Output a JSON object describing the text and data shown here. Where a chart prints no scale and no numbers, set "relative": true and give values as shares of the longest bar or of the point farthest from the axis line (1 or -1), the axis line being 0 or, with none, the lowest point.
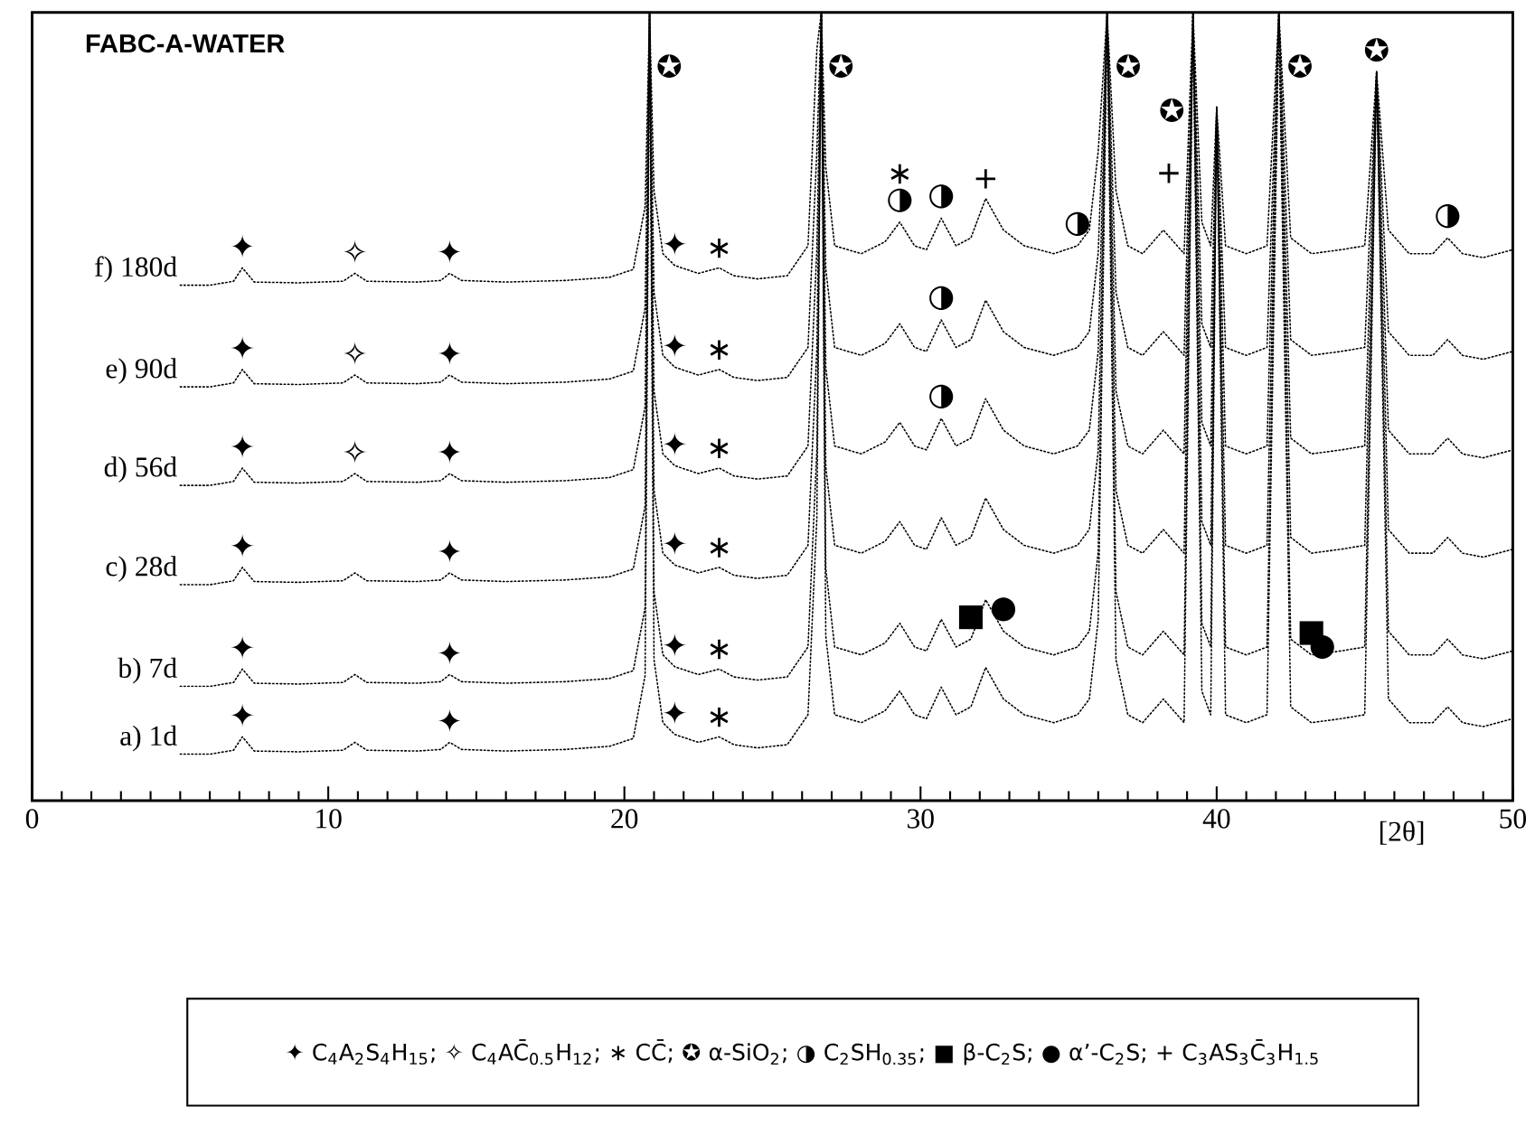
{
  "chart_data": {
    "type": "line",
    "title": "FABC-A-WATER",
    "xlabel": "[2θ]",
    "relative": true,
    "line_style": "dotted",
    "marker": "none",
    "xlim": [
      0,
      50
    ],
    "xticks": [
      0,
      {
        "value": 1,
        "label": null
      },
      {
        "value": 2,
        "label": null
      },
      {
        "value": 3,
        "label": null
      },
      {
        "value": 4,
        "label": null
      },
      {
        "value": 5,
        "label": null
      },
      {
        "value": 6,
        "label": null
      },
      {
        "value": 7,
        "label": null
      },
      {
        "value": 8,
        "label": null
      },
      {
        "value": 9,
        "label": null
      },
      10,
      {
        "value": 11,
        "label": null
      },
      {
        "value": 12,
        "label": null
      },
      {
        "value": 13,
        "label": null
      },
      {
        "value": 14,
        "label": null
      },
      {
        "value": 15,
        "label": null
      },
      {
        "value": 16,
        "label": null
      },
      {
        "value": 17,
        "label": null
      },
      {
        "value": 18,
        "label": null
      },
      {
        "value": 19,
        "label": null
      },
      20,
      {
        "value": 21,
        "label": null
      },
      {
        "value": 22,
        "label": null
      },
      {
        "value": 23,
        "label": null
      },
      {
        "value": 24,
        "label": null
      },
      {
        "value": 25,
        "label": null
      },
      {
        "value": 26,
        "label": null
      },
      {
        "value": 27,
        "label": null
      },
      {
        "value": 28,
        "label": null
      },
      {
        "value": 29,
        "label": null
      },
      30,
      {
        "value": 31,
        "label": null
      },
      {
        "value": 32,
        "label": null
      },
      {
        "value": 33,
        "label": null
      },
      {
        "value": 34,
        "label": null
      },
      {
        "value": 35,
        "label": null
      },
      {
        "value": 36,
        "label": null
      },
      {
        "value": 37,
        "label": null
      },
      {
        "value": 38,
        "label": null
      },
      {
        "value": 39,
        "label": null
      },
      40,
      {
        "value": 41,
        "label": null
      },
      {
        "value": 42,
        "label": null
      },
      {
        "value": 43,
        "label": null
      },
      {
        "value": 44,
        "label": null
      },
      {
        "value": 45,
        "label": null
      },
      {
        "value": 46,
        "label": null
      },
      {
        "value": 47,
        "label": null
      },
      {
        "value": 48,
        "label": null
      },
      {
        "value": 49,
        "label": null
      },
      50
    ],
    "x": [
      5,
      6,
      6.8,
      7.1,
      7.5,
      9,
      10.5,
      10.9,
      11.3,
      13,
      13.8,
      14.1,
      14.5,
      16,
      18,
      19.5,
      20.3,
      20.7,
      20.85,
      21.0,
      21.3,
      21.7,
      22.5,
      23.2,
      23.7,
      24.5,
      25.5,
      26.2,
      26.5,
      26.65,
      26.8,
      27.1,
      28,
      28.8,
      29.3,
      29.8,
      30.2,
      30.7,
      31.2,
      31.7,
      32.2,
      32.8,
      33.5,
      34.5,
      35.3,
      35.7,
      36.0,
      36.3,
      36.6,
      37.0,
      37.5,
      38.2,
      38.9,
      39.2,
      39.5,
      39.8,
      40.0,
      40.3,
      41.0,
      41.7,
      42.1,
      42.5,
      43.2,
      44.2,
      45.0,
      45.4,
      45.8,
      46.5,
      47.3,
      47.8,
      48.3,
      49,
      50
    ],
    "series": [
      {
        "name": "f) 180d",
        "color": "#000000",
        "values": [
          0.654,
          0.654,
          0.659,
          0.676,
          0.658,
          0.657,
          0.659,
          0.669,
          0.659,
          0.658,
          0.66,
          0.669,
          0.66,
          0.658,
          0.66,
          0.664,
          0.674,
          0.754,
          1,
          0.774,
          0.694,
          0.679,
          0.669,
          0.676,
          0.666,
          0.662,
          0.666,
          0.704,
          0.954,
          1,
          0.804,
          0.704,
          0.694,
          0.709,
          0.734,
          0.704,
          0.699,
          0.739,
          0.704,
          0.714,
          0.764,
          0.724,
          0.704,
          0.694,
          0.704,
          0.724,
          0.824,
          1,
          0.774,
          0.704,
          0.694,
          0.724,
          0.694,
          1,
          0.734,
          0.704,
          0.88,
          0.704,
          0.694,
          0.704,
          1,
          0.714,
          0.694,
          0.699,
          0.704,
          0.925,
          0.724,
          0.694,
          0.694,
          0.714,
          0.694,
          0.689,
          0.699
        ]
      },
      {
        "name": "e) 90d",
        "color": "#000000",
        "values": [
          0.525,
          0.525,
          0.53,
          0.547,
          0.529,
          0.528,
          0.53,
          0.54,
          0.53,
          0.529,
          0.531,
          0.54,
          0.531,
          0.529,
          0.531,
          0.535,
          0.545,
          0.625,
          1,
          0.645,
          0.565,
          0.55,
          0.54,
          0.547,
          0.537,
          0.533,
          0.537,
          0.575,
          0.825,
          1,
          0.675,
          0.575,
          0.565,
          0.58,
          0.605,
          0.575,
          0.57,
          0.61,
          0.575,
          0.585,
          0.635,
          0.595,
          0.575,
          0.565,
          0.575,
          0.595,
          0.695,
          1,
          0.645,
          0.575,
          0.565,
          0.595,
          0.565,
          1,
          0.605,
          0.575,
          0.88,
          0.575,
          0.565,
          0.575,
          1,
          0.585,
          0.565,
          0.57,
          0.575,
          0.925,
          0.595,
          0.565,
          0.565,
          0.585,
          0.565,
          0.56,
          0.57
        ]
      },
      {
        "name": "d) 56d",
        "color": "#000000",
        "values": [
          0.4,
          0.4,
          0.405,
          0.422,
          0.404,
          0.403,
          0.405,
          0.415,
          0.405,
          0.404,
          0.406,
          0.415,
          0.406,
          0.404,
          0.406,
          0.41,
          0.42,
          0.5,
          1,
          0.52,
          0.44,
          0.425,
          0.415,
          0.422,
          0.412,
          0.408,
          0.412,
          0.45,
          0.7,
          1,
          0.55,
          0.45,
          0.44,
          0.455,
          0.48,
          0.45,
          0.445,
          0.485,
          0.45,
          0.46,
          0.51,
          0.47,
          0.45,
          0.44,
          0.45,
          0.47,
          0.57,
          1,
          0.52,
          0.45,
          0.44,
          0.47,
          0.44,
          1,
          0.48,
          0.45,
          0.88,
          0.45,
          0.44,
          0.45,
          1,
          0.46,
          0.44,
          0.445,
          0.45,
          0.925,
          0.47,
          0.44,
          0.44,
          0.46,
          0.44,
          0.435,
          0.445
        ]
      },
      {
        "name": "c) 28d",
        "color": "#000000",
        "values": [
          0.274,
          0.274,
          0.279,
          0.296,
          0.278,
          0.277,
          0.279,
          0.289,
          0.279,
          0.278,
          0.28,
          0.289,
          0.28,
          0.278,
          0.28,
          0.284,
          0.294,
          0.374,
          1,
          0.394,
          0.314,
          0.299,
          0.289,
          0.296,
          0.286,
          0.282,
          0.286,
          0.324,
          0.574,
          1,
          0.424,
          0.324,
          0.314,
          0.329,
          0.354,
          0.324,
          0.319,
          0.359,
          0.324,
          0.334,
          0.384,
          0.344,
          0.324,
          0.314,
          0.324,
          0.344,
          0.444,
          1,
          0.394,
          0.324,
          0.314,
          0.344,
          0.314,
          1,
          0.354,
          0.324,
          0.88,
          0.324,
          0.314,
          0.324,
          1,
          0.334,
          0.314,
          0.319,
          0.324,
          0.925,
          0.344,
          0.314,
          0.314,
          0.334,
          0.314,
          0.309,
          0.319
        ]
      },
      {
        "name": "b) 7d",
        "color": "#000000",
        "values": [
          0.145,
          0.145,
          0.15,
          0.167,
          0.149,
          0.148,
          0.15,
          0.16,
          0.15,
          0.149,
          0.151,
          0.16,
          0.151,
          0.149,
          0.151,
          0.155,
          0.165,
          0.245,
          1,
          0.265,
          0.185,
          0.17,
          0.16,
          0.167,
          0.157,
          0.153,
          0.157,
          0.195,
          0.445,
          1,
          0.295,
          0.195,
          0.185,
          0.2,
          0.225,
          0.195,
          0.19,
          0.23,
          0.195,
          0.205,
          0.255,
          0.215,
          0.195,
          0.185,
          0.195,
          0.215,
          0.315,
          1,
          0.265,
          0.195,
          0.185,
          0.215,
          0.185,
          1,
          0.225,
          0.195,
          0.88,
          0.195,
          0.185,
          0.195,
          1,
          0.205,
          0.185,
          0.19,
          0.195,
          0.925,
          0.215,
          0.185,
          0.185,
          0.205,
          0.185,
          0.18,
          0.19
        ]
      },
      {
        "name": "a) 1d",
        "color": "#000000",
        "values": [
          0.059,
          0.059,
          0.064,
          0.081,
          0.063,
          0.062,
          0.064,
          0.074,
          0.064,
          0.063,
          0.065,
          0.074,
          0.065,
          0.063,
          0.065,
          0.069,
          0.079,
          0.159,
          1,
          0.179,
          0.099,
          0.084,
          0.074,
          0.081,
          0.071,
          0.067,
          0.071,
          0.109,
          0.359,
          1,
          0.209,
          0.109,
          0.099,
          0.114,
          0.139,
          0.109,
          0.104,
          0.144,
          0.109,
          0.119,
          0.169,
          0.129,
          0.109,
          0.099,
          0.109,
          0.129,
          0.229,
          1,
          0.179,
          0.109,
          0.099,
          0.129,
          0.099,
          1,
          0.139,
          0.109,
          0.88,
          0.109,
          0.099,
          0.109,
          1,
          0.119,
          0.099,
          0.104,
          0.109,
          0.925,
          0.129,
          0.099,
          0.099,
          0.119,
          0.099,
          0.094,
          0.104
        ]
      }
    ],
    "annotations": [
      {
        "text": "✦",
        "x": 7.1,
        "y": 0.676
      },
      {
        "text": "✧",
        "x": 10.9,
        "y": 0.669
      },
      {
        "text": "✦",
        "x": 14.1,
        "y": 0.669
      },
      {
        "text": "✦",
        "x": 21.7,
        "y": 0.679
      },
      {
        "text": "∗",
        "x": 23.2,
        "y": 0.676
      },
      {
        "text": "✦",
        "x": 7.1,
        "y": 0.547
      },
      {
        "text": "✧",
        "x": 10.9,
        "y": 0.54
      },
      {
        "text": "✦",
        "x": 14.1,
        "y": 0.54
      },
      {
        "text": "✦",
        "x": 21.7,
        "y": 0.55
      },
      {
        "text": "∗",
        "x": 23.2,
        "y": 0.547
      },
      {
        "text": "✦",
        "x": 7.1,
        "y": 0.422
      },
      {
        "text": "✧",
        "x": 10.9,
        "y": 0.415
      },
      {
        "text": "✦",
        "x": 14.1,
        "y": 0.415
      },
      {
        "text": "✦",
        "x": 21.7,
        "y": 0.425
      },
      {
        "text": "∗",
        "x": 23.2,
        "y": 0.422
      },
      {
        "text": "✦",
        "x": 7.1,
        "y": 0.296
      },
      {
        "text": "✦",
        "x": 14.1,
        "y": 0.289
      },
      {
        "text": "✦",
        "x": 21.7,
        "y": 0.299
      },
      {
        "text": "∗",
        "x": 23.2,
        "y": 0.296
      },
      {
        "text": "✦",
        "x": 7.1,
        "y": 0.167
      },
      {
        "text": "✦",
        "x": 14.1,
        "y": 0.16
      },
      {
        "text": "✦",
        "x": 21.7,
        "y": 0.17
      },
      {
        "text": "∗",
        "x": 23.2,
        "y": 0.167
      },
      {
        "text": "✦",
        "x": 7.1,
        "y": 0.081
      },
      {
        "text": "✦",
        "x": 14.1,
        "y": 0.074
      },
      {
        "text": "✦",
        "x": 21.7,
        "y": 0.084
      },
      {
        "text": "∗",
        "x": 23.2,
        "y": 0.081
      },
      {
        "text": "✪",
        "x": 20.9,
        "y": 0.932
      },
      {
        "text": "✪",
        "x": 26.7,
        "y": 0.932
      },
      {
        "text": "✪",
        "x": 36.4,
        "y": 0.932
      },
      {
        "text": "✪",
        "x": 39.1,
        "y": 0.876
      },
      {
        "text": "✪",
        "x": 42.2,
        "y": 0.932
      },
      {
        "text": "✪",
        "x": 45.4,
        "y": 0.925
      },
      {
        "text": "◑",
        "x": 29.3,
        "y": 0.734
      },
      {
        "text": "∗",
        "x": 29.3,
        "y": 0.734
      },
      {
        "text": "◑",
        "x": 30.7,
        "y": 0.739
      },
      {
        "text": "+",
        "x": 32.2,
        "y": 0.764
      },
      {
        "text": "◑",
        "x": 35.3,
        "y": 0.704
      },
      {
        "text": "+",
        "x": 39.0,
        "y": 0.796
      },
      {
        "text": "◑",
        "x": 47.8,
        "y": 0.714
      },
      {
        "text": "◑",
        "x": 30.7,
        "y": 0.61
      },
      {
        "text": "◑",
        "x": 30.7,
        "y": 0.485
      },
      {
        "text": "■",
        "x": 31.7,
        "y": 0.205
      },
      {
        "text": "●",
        "x": 32.8,
        "y": 0.215
      },
      {
        "text": "■",
        "x": 43.2,
        "y": 0.185
      },
      {
        "text": "●",
        "x": 44.2,
        "y": 0.195
      },
      "✦ C$_{4}$A$_{2}$S$_{4}$H$_{15}$; ✧ C$_{4}$AC̄$_{0.5}$H$_{12}$; ∗ CC̄; ✪ α-SiO$_{2}$; ◑ C$_{2}$SH$_{0.35}$; ■ β-C$_{2}$S; ● α’-C$_{2}$S; + C$_{3}$AS$_{3}$C̄$_{3}$H$_{1.5}$"
    ]
  }
}
